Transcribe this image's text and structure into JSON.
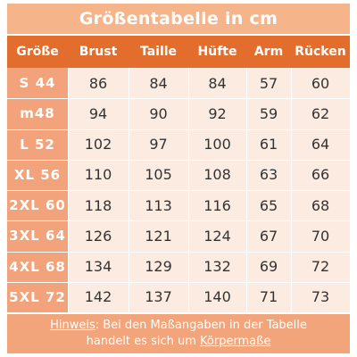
{
  "title": "Größentabelle in cm",
  "headers": [
    "Größe",
    "Brust",
    "Taille",
    "Hüfte",
    "Arm",
    "Rücken"
  ],
  "rows": [
    {
      "size": "S 44",
      "values": [
        "86",
        "84",
        "84",
        "57",
        "60"
      ]
    },
    {
      "size": "m48",
      "values": [
        "94",
        "90",
        "92",
        "59",
        "62"
      ]
    },
    {
      "size": "L 52",
      "values": [
        "102",
        "97",
        "100",
        "61",
        "64"
      ]
    },
    {
      "size": "XL 56",
      "values": [
        "110",
        "105",
        "108",
        "63",
        "66"
      ]
    },
    {
      "size": "2XL 60",
      "values": [
        "118",
        "113",
        "116",
        "65",
        "68"
      ]
    },
    {
      "size": "3XL 64",
      "values": [
        "126",
        "121",
        "124",
        "67",
        "70"
      ]
    },
    {
      "size": "4XL 68",
      "values": [
        "134",
        "129",
        "132",
        "69",
        "72"
      ]
    },
    {
      "size": "5XL 72",
      "values": [
        "142",
        "137",
        "140",
        "71",
        "73"
      ]
    }
  ],
  "note": {
    "label": "Hinweis",
    "line1_rest": ": Bei den Maßangaben in der Tabelle",
    "line2_prefix": "handelt es sich um ",
    "line2_link": "Körpermaße"
  },
  "colors": {
    "header": "#e26d2d",
    "title_bar": "#f5b48a",
    "size_column": "#f3a37b",
    "body": "#fbebe1",
    "note_bar": "#f2a47a"
  }
}
